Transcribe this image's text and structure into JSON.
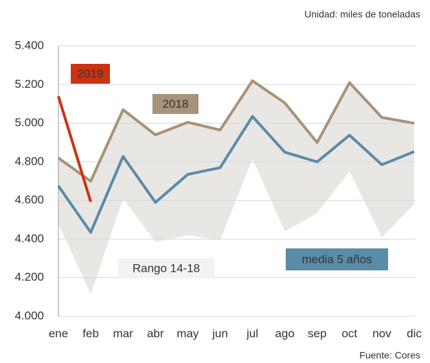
{
  "chart_data": {
    "type": "line",
    "unit_note": "Unidad: miles de toneladas",
    "source": "Fuente: Cores",
    "categories": [
      "ene",
      "feb",
      "mar",
      "abr",
      "may",
      "jun",
      "jul",
      "ago",
      "sep",
      "oct",
      "nov",
      "dic"
    ],
    "range": {
      "name": "Rango 14-18",
      "color": "#e9e7e4",
      "low": [
        4480,
        4115,
        4610,
        4385,
        4420,
        4395,
        4815,
        4440,
        4535,
        4750,
        4410,
        4580
      ],
      "high": [
        4820,
        4700,
        5070,
        4940,
        5005,
        4965,
        5220,
        5105,
        4900,
        5210,
        5030,
        5000
      ]
    },
    "series": [
      {
        "name": "2018",
        "color": "#a89279",
        "values": [
          4820,
          4700,
          5070,
          4940,
          5005,
          4965,
          5220,
          5105,
          4900,
          5210,
          5030,
          5000
        ]
      },
      {
        "name": "media 5 años",
        "color": "#5a8ba8",
        "values": [
          4675,
          4435,
          4828,
          4590,
          4735,
          4770,
          5035,
          4850,
          4800,
          4938,
          4785,
          4853
        ]
      },
      {
        "name": "2019",
        "color": "#cc3311",
        "values": [
          5140,
          4593,
          null,
          null,
          null,
          null,
          null,
          null,
          null,
          null,
          null,
          null
        ]
      }
    ],
    "ylim": [
      4000,
      5400
    ],
    "yticks": [
      {
        "value": 4000,
        "label": "4.000"
      },
      {
        "value": 4200,
        "label": "4.200"
      },
      {
        "value": 4400,
        "label": "4.400"
      },
      {
        "value": 4600,
        "label": "4.600"
      },
      {
        "value": 4800,
        "label": "4.800"
      },
      {
        "value": 5000,
        "label": "5.000"
      },
      {
        "value": 5200,
        "label": "5.200"
      },
      {
        "value": 5400,
        "label": "5.400"
      }
    ],
    "grid": true
  }
}
